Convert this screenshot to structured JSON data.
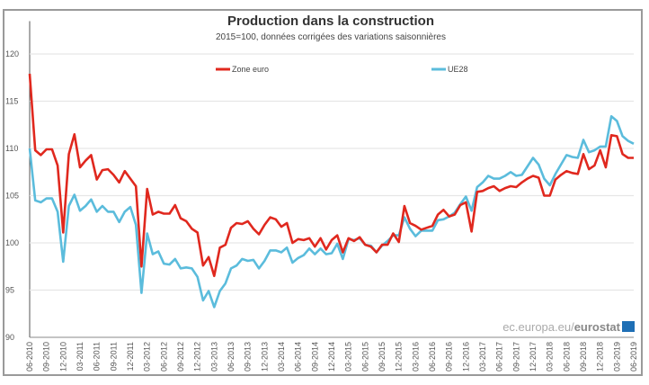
{
  "chart_data": {
    "type": "line",
    "title": "Production dans la construction",
    "subtitle": "2015=100, données corrigées des variations saisonnières",
    "xlabel": "",
    "ylabel": "",
    "ylim": [
      90,
      123
    ],
    "yticks": [
      90,
      95,
      100,
      105,
      110,
      115,
      120
    ],
    "grid": true,
    "legend_placement": "top",
    "x_start": "06-2010",
    "x_end": "06-2019",
    "xtick_labels": [
      "06-2010",
      "09-2010",
      "12-2010",
      "03-2011",
      "06-2011",
      "09-2011",
      "12-2011",
      "03-2012",
      "06-2012",
      "09-2012",
      "12-2012",
      "03-2013",
      "06-2013",
      "09-2013",
      "12-2013",
      "03-2014",
      "06-2014",
      "09-2014",
      "12-2014",
      "03-2015",
      "06-2015",
      "09-2015",
      "12-2015",
      "03-2016",
      "06-2016",
      "09-2016",
      "12-2016",
      "03-2017",
      "06-2017",
      "09-2017",
      "12-2017",
      "03-2018",
      "06-2018",
      "09-2018",
      "12-2018",
      "03-2019",
      "06-2019"
    ],
    "series": [
      {
        "name": "Zone euro",
        "color": "#e0281e",
        "values": [
          117.9,
          109.8,
          109.3,
          109.9,
          109.9,
          108.2,
          101.1,
          109.4,
          111.5,
          108.0,
          108.7,
          109.3,
          106.7,
          107.7,
          107.8,
          107.2,
          106.4,
          107.6,
          106.8,
          106.0,
          97.5,
          105.7,
          103.0,
          103.3,
          103.1,
          103.1,
          104.0,
          102.6,
          102.3,
          101.5,
          101.1,
          97.6,
          98.5,
          96.5,
          99.5,
          99.8,
          101.6,
          102.1,
          102.0,
          102.3,
          101.5,
          100.9,
          101.9,
          102.7,
          102.5,
          101.7,
          102.1,
          100.0,
          100.4,
          100.3,
          100.5,
          99.6,
          100.5,
          99.3,
          100.3,
          100.8,
          99.0,
          100.5,
          100.2,
          100.6,
          99.8,
          99.6,
          99.0,
          99.8,
          99.8,
          101.0,
          100.1,
          103.9,
          102.1,
          101.8,
          101.4,
          101.6,
          101.8,
          103.0,
          103.5,
          102.8,
          103.0,
          104.0,
          104.3,
          101.2,
          105.4,
          105.5,
          105.8,
          106.0,
          105.5,
          105.8,
          106.0,
          105.9,
          106.4,
          106.8,
          107.1,
          106.9,
          105.0,
          105.0,
          106.7,
          107.2,
          107.6,
          107.4,
          107.3,
          109.4,
          107.8,
          108.2,
          109.8,
          108.0,
          111.4,
          111.3,
          109.4,
          109.0,
          109.0
        ]
      },
      {
        "name": "UE28",
        "color": "#5bbcdc",
        "values": [
          110.0,
          104.5,
          104.3,
          104.7,
          104.7,
          103.3,
          98.0,
          103.9,
          105.1,
          103.4,
          103.9,
          104.6,
          103.3,
          103.9,
          103.3,
          103.3,
          102.2,
          103.3,
          103.8,
          101.9,
          94.7,
          101.0,
          98.8,
          99.1,
          97.8,
          97.7,
          98.3,
          97.3,
          97.4,
          97.3,
          96.4,
          93.9,
          94.9,
          93.2,
          94.9,
          95.7,
          97.3,
          97.6,
          98.3,
          98.1,
          98.2,
          97.3,
          98.1,
          99.2,
          99.2,
          99.0,
          99.5,
          97.9,
          98.4,
          98.7,
          99.4,
          98.8,
          99.4,
          98.8,
          98.9,
          99.9,
          98.3,
          100.4,
          100.3,
          100.5,
          99.8,
          99.7,
          99.0,
          99.7,
          100.2,
          100.8,
          100.8,
          102.7,
          101.5,
          100.7,
          101.3,
          101.3,
          101.3,
          102.4,
          102.5,
          102.8,
          103.2,
          104.1,
          104.9,
          103.4,
          105.9,
          106.4,
          107.1,
          106.8,
          106.8,
          107.1,
          107.5,
          107.1,
          107.2,
          108.1,
          109.0,
          108.3,
          106.8,
          106.1,
          107.3,
          108.3,
          109.3,
          109.1,
          109.0,
          110.9,
          109.6,
          109.8,
          110.2,
          110.2,
          113.4,
          112.9,
          111.3,
          110.8,
          110.5
        ]
      }
    ]
  },
  "watermark": {
    "prefix": "ec.europa.eu/",
    "brand": "eurostat",
    "flag_color": "#1f6fb5"
  }
}
